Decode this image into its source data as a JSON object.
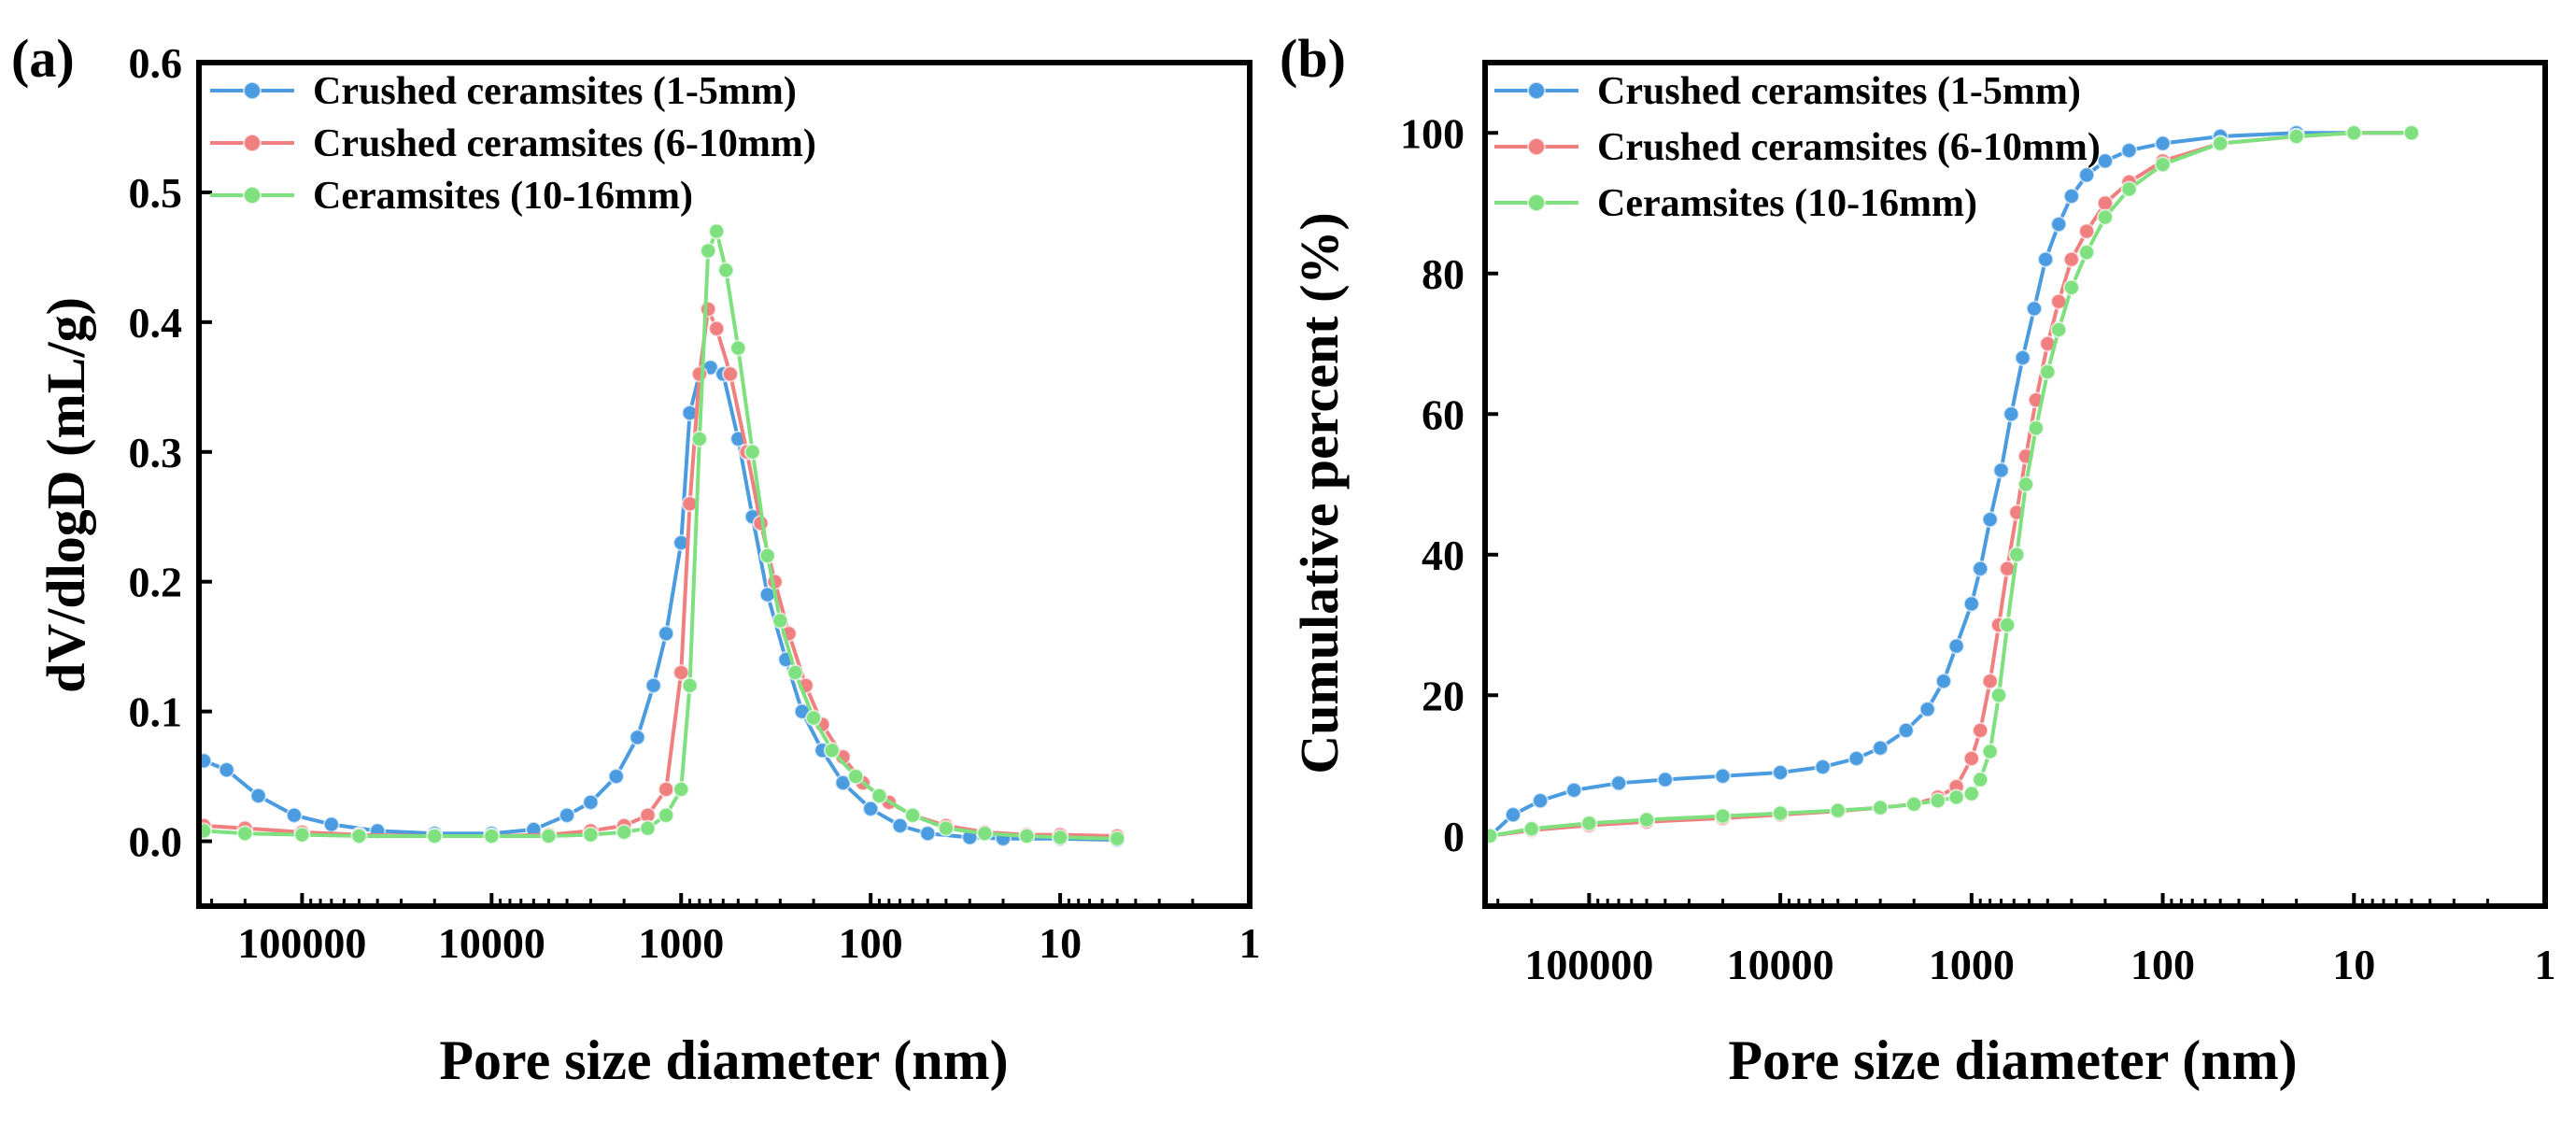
{
  "figure": {
    "panel_labels": [
      "(a)",
      "(b)"
    ]
  },
  "chart_data": [
    {
      "type": "line",
      "panel": "(a)",
      "title": "",
      "xlabel": "Pore size diameter (nm)",
      "ylabel": "dV/dlogD (mL/g)",
      "xscale": "log",
      "x_reversed": true,
      "xlim": [
        350000,
        1
      ],
      "ylim": [
        -0.05,
        0.6
      ],
      "xticks": [
        100000,
        10000,
        1000,
        100,
        10,
        1
      ],
      "xtick_labels": [
        "100000",
        "10000",
        "1000",
        "100",
        "10",
        "1"
      ],
      "yticks": [
        0.0,
        0.1,
        0.2,
        0.3,
        0.4,
        0.5,
        0.6
      ],
      "ytick_labels": [
        "0.0",
        "0.1",
        "0.2",
        "0.3",
        "0.4",
        "0.5",
        "0.6"
      ],
      "legend_position": "top-left",
      "series": [
        {
          "name": "Crushed ceramsites (1-5mm)",
          "color": "#4a9be0",
          "points": [
            [
              330000,
              0.062
            ],
            [
              250000,
              0.055
            ],
            [
              170000,
              0.035
            ],
            [
              110000,
              0.02
            ],
            [
              70000,
              0.013
            ],
            [
              40000,
              0.008
            ],
            [
              20000,
              0.006
            ],
            [
              10000,
              0.006
            ],
            [
              6000,
              0.009
            ],
            [
              4000,
              0.02
            ],
            [
              3000,
              0.03
            ],
            [
              2200,
              0.05
            ],
            [
              1700,
              0.08
            ],
            [
              1400,
              0.12
            ],
            [
              1200,
              0.16
            ],
            [
              1000,
              0.23
            ],
            [
              900,
              0.33
            ],
            [
              800,
              0.36
            ],
            [
              700,
              0.365
            ],
            [
              600,
              0.36
            ],
            [
              500,
              0.31
            ],
            [
              420,
              0.25
            ],
            [
              350,
              0.19
            ],
            [
              280,
              0.14
            ],
            [
              230,
              0.1
            ],
            [
              180,
              0.07
            ],
            [
              140,
              0.045
            ],
            [
              100,
              0.025
            ],
            [
              70,
              0.012
            ],
            [
              50,
              0.006
            ],
            [
              30,
              0.003
            ],
            [
              20,
              0.002
            ],
            [
              10,
              0.002
            ],
            [
              5,
              0.001
            ]
          ]
        },
        {
          "name": "Crushed ceramsites (6-10mm)",
          "color": "#f07f80",
          "points": [
            [
              330000,
              0.012
            ],
            [
              200000,
              0.01
            ],
            [
              100000,
              0.007
            ],
            [
              50000,
              0.005
            ],
            [
              20000,
              0.004
            ],
            [
              10000,
              0.004
            ],
            [
              5000,
              0.005
            ],
            [
              3000,
              0.008
            ],
            [
              2000,
              0.012
            ],
            [
              1500,
              0.02
            ],
            [
              1200,
              0.04
            ],
            [
              1000,
              0.13
            ],
            [
              900,
              0.26
            ],
            [
              800,
              0.36
            ],
            [
              720,
              0.41
            ],
            [
              650,
              0.395
            ],
            [
              550,
              0.36
            ],
            [
              450,
              0.3
            ],
            [
              380,
              0.245
            ],
            [
              320,
              0.2
            ],
            [
              270,
              0.16
            ],
            [
              220,
              0.12
            ],
            [
              180,
              0.09
            ],
            [
              140,
              0.065
            ],
            [
              110,
              0.045
            ],
            [
              80,
              0.03
            ],
            [
              60,
              0.02
            ],
            [
              40,
              0.012
            ],
            [
              25,
              0.007
            ],
            [
              15,
              0.005
            ],
            [
              10,
              0.005
            ],
            [
              5,
              0.004
            ]
          ]
        },
        {
          "name": "Ceramsites (10-16mm)",
          "color": "#7ee07e",
          "points": [
            [
              330000,
              0.008
            ],
            [
              200000,
              0.006
            ],
            [
              100000,
              0.005
            ],
            [
              50000,
              0.004
            ],
            [
              20000,
              0.004
            ],
            [
              10000,
              0.004
            ],
            [
              5000,
              0.004
            ],
            [
              3000,
              0.005
            ],
            [
              2000,
              0.007
            ],
            [
              1500,
              0.01
            ],
            [
              1200,
              0.02
            ],
            [
              1000,
              0.04
            ],
            [
              900,
              0.12
            ],
            [
              800,
              0.31
            ],
            [
              720,
              0.455
            ],
            [
              650,
              0.47
            ],
            [
              580,
              0.44
            ],
            [
              500,
              0.38
            ],
            [
              420,
              0.3
            ],
            [
              350,
              0.22
            ],
            [
              300,
              0.17
            ],
            [
              250,
              0.13
            ],
            [
              200,
              0.095
            ],
            [
              160,
              0.07
            ],
            [
              120,
              0.05
            ],
            [
              90,
              0.035
            ],
            [
              60,
              0.02
            ],
            [
              40,
              0.01
            ],
            [
              25,
              0.006
            ],
            [
              15,
              0.004
            ],
            [
              10,
              0.003
            ],
            [
              5,
              0.002
            ]
          ]
        }
      ]
    },
    {
      "type": "line",
      "panel": "(b)",
      "title": "",
      "xlabel": "Pore size diameter (nm)",
      "ylabel": "Cumulative percent (%)",
      "xscale": "log",
      "x_reversed": true,
      "xlim": [
        350000,
        1
      ],
      "ylim": [
        -10,
        110
      ],
      "xticks": [
        100000,
        10000,
        1000,
        100,
        10,
        1
      ],
      "xtick_labels": [
        "100000",
        "10000",
        "1000",
        "100",
        "10",
        "1"
      ],
      "yticks": [
        0,
        20,
        40,
        60,
        80,
        100
      ],
      "ytick_labels": [
        "0",
        "20",
        "40",
        "60",
        "80",
        "100"
      ],
      "legend_position": "top-left",
      "series": [
        {
          "name": "Crushed ceramsites (1-5mm)",
          "color": "#4a9be0",
          "points": [
            [
              330000,
              0
            ],
            [
              250000,
              3
            ],
            [
              180000,
              5
            ],
            [
              120000,
              6.5
            ],
            [
              70000,
              7.5
            ],
            [
              40000,
              8
            ],
            [
              20000,
              8.5
            ],
            [
              10000,
              9
            ],
            [
              6000,
              9.8
            ],
            [
              4000,
              11
            ],
            [
              3000,
              12.5
            ],
            [
              2200,
              15
            ],
            [
              1700,
              18
            ],
            [
              1400,
              22
            ],
            [
              1200,
              27
            ],
            [
              1000,
              33
            ],
            [
              900,
              38
            ],
            [
              800,
              45
            ],
            [
              700,
              52
            ],
            [
              620,
              60
            ],
            [
              540,
              68
            ],
            [
              470,
              75
            ],
            [
              410,
              82
            ],
            [
              350,
              87
            ],
            [
              300,
              91
            ],
            [
              250,
              94
            ],
            [
              200,
              96
            ],
            [
              150,
              97.5
            ],
            [
              100,
              98.5
            ],
            [
              50,
              99.5
            ],
            [
              20,
              100
            ],
            [
              10,
              100
            ],
            [
              5,
              100
            ]
          ]
        },
        {
          "name": "Crushed ceramsites (6-10mm)",
          "color": "#f07f80",
          "points": [
            [
              330000,
              0
            ],
            [
              200000,
              0.8
            ],
            [
              100000,
              1.5
            ],
            [
              50000,
              2
            ],
            [
              20000,
              2.5
            ],
            [
              10000,
              3
            ],
            [
              5000,
              3.5
            ],
            [
              3000,
              4
            ],
            [
              2000,
              4.5
            ],
            [
              1500,
              5.5
            ],
            [
              1200,
              7
            ],
            [
              1000,
              11
            ],
            [
              900,
              15
            ],
            [
              800,
              22
            ],
            [
              720,
              30
            ],
            [
              650,
              38
            ],
            [
              580,
              46
            ],
            [
              520,
              54
            ],
            [
              460,
              62
            ],
            [
              400,
              70
            ],
            [
              350,
              76
            ],
            [
              300,
              82
            ],
            [
              250,
              86
            ],
            [
              200,
              90
            ],
            [
              150,
              93
            ],
            [
              100,
              96
            ],
            [
              50,
              98.5
            ],
            [
              20,
              99.5
            ],
            [
              10,
              100
            ],
            [
              5,
              100
            ]
          ]
        },
        {
          "name": "Ceramsites (10-16mm)",
          "color": "#7ee07e",
          "points": [
            [
              330000,
              0
            ],
            [
              200000,
              1
            ],
            [
              100000,
              1.8
            ],
            [
              50000,
              2.3
            ],
            [
              20000,
              2.8
            ],
            [
              10000,
              3.2
            ],
            [
              5000,
              3.6
            ],
            [
              3000,
              4
            ],
            [
              2000,
              4.5
            ],
            [
              1500,
              5
            ],
            [
              1200,
              5.5
            ],
            [
              1000,
              6
            ],
            [
              900,
              8
            ],
            [
              800,
              12
            ],
            [
              720,
              20
            ],
            [
              650,
              30
            ],
            [
              580,
              40
            ],
            [
              520,
              50
            ],
            [
              460,
              58
            ],
            [
              400,
              66
            ],
            [
              350,
              72
            ],
            [
              300,
              78
            ],
            [
              250,
              83
            ],
            [
              200,
              88
            ],
            [
              150,
              92
            ],
            [
              100,
              95.5
            ],
            [
              50,
              98.5
            ],
            [
              20,
              99.5
            ],
            [
              10,
              100
            ],
            [
              5,
              100
            ]
          ]
        }
      ]
    }
  ]
}
